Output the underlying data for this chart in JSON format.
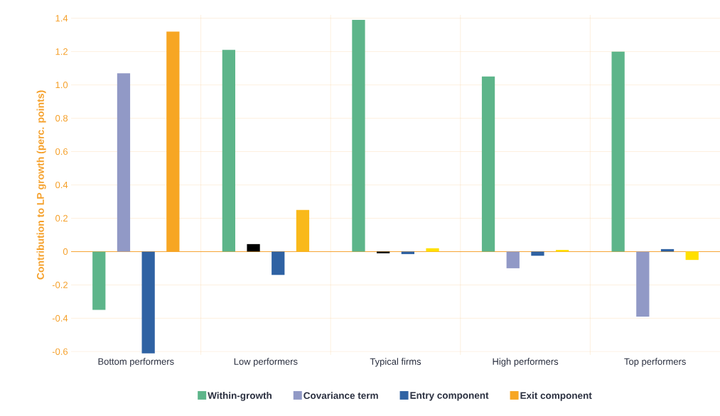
{
  "chart_data": {
    "type": "bar",
    "ylabel": "Contribution to LP growth (perc. points)",
    "categories": [
      "Bottom performers",
      "Low performers",
      "Typical firms",
      "High performers",
      "Top performers"
    ],
    "series": [
      {
        "name": "Within-growth",
        "color": "#5db58a",
        "values": [
          -0.35,
          1.21,
          1.39,
          1.05,
          1.2
        ]
      },
      {
        "name": "Covariance term",
        "color": "#9199c6",
        "colors": [
          "#9199c6",
          "#000000",
          "#000000",
          "#9199c6",
          "#9199c6"
        ],
        "values": [
          1.07,
          0.045,
          -0.01,
          -0.1,
          -0.39
        ]
      },
      {
        "name": "Entry component",
        "color": "#2f62a3",
        "values": [
          -0.61,
          -0.14,
          -0.015,
          -0.025,
          0.015
        ]
      },
      {
        "name": "Exit component",
        "color": "#f7a623",
        "colors": [
          "#f7a623",
          "#f9b91a",
          "#ffe000",
          "#ffe000",
          "#ffe000"
        ],
        "values": [
          1.32,
          0.25,
          0.02,
          0.01,
          -0.05
        ]
      }
    ],
    "ylim": [
      -0.62,
      1.42
    ],
    "yticks": [
      -0.6,
      -0.4,
      -0.2,
      0,
      0.2,
      0.4,
      0.6,
      0.8,
      {
        "value": 1.0,
        "label": "1.0"
      },
      1.2,
      1.4
    ],
    "ref_lines": [
      {
        "axis": "y",
        "value": 0,
        "color": "#f5a02a"
      }
    ],
    "grid": true,
    "legend": "bottom"
  }
}
